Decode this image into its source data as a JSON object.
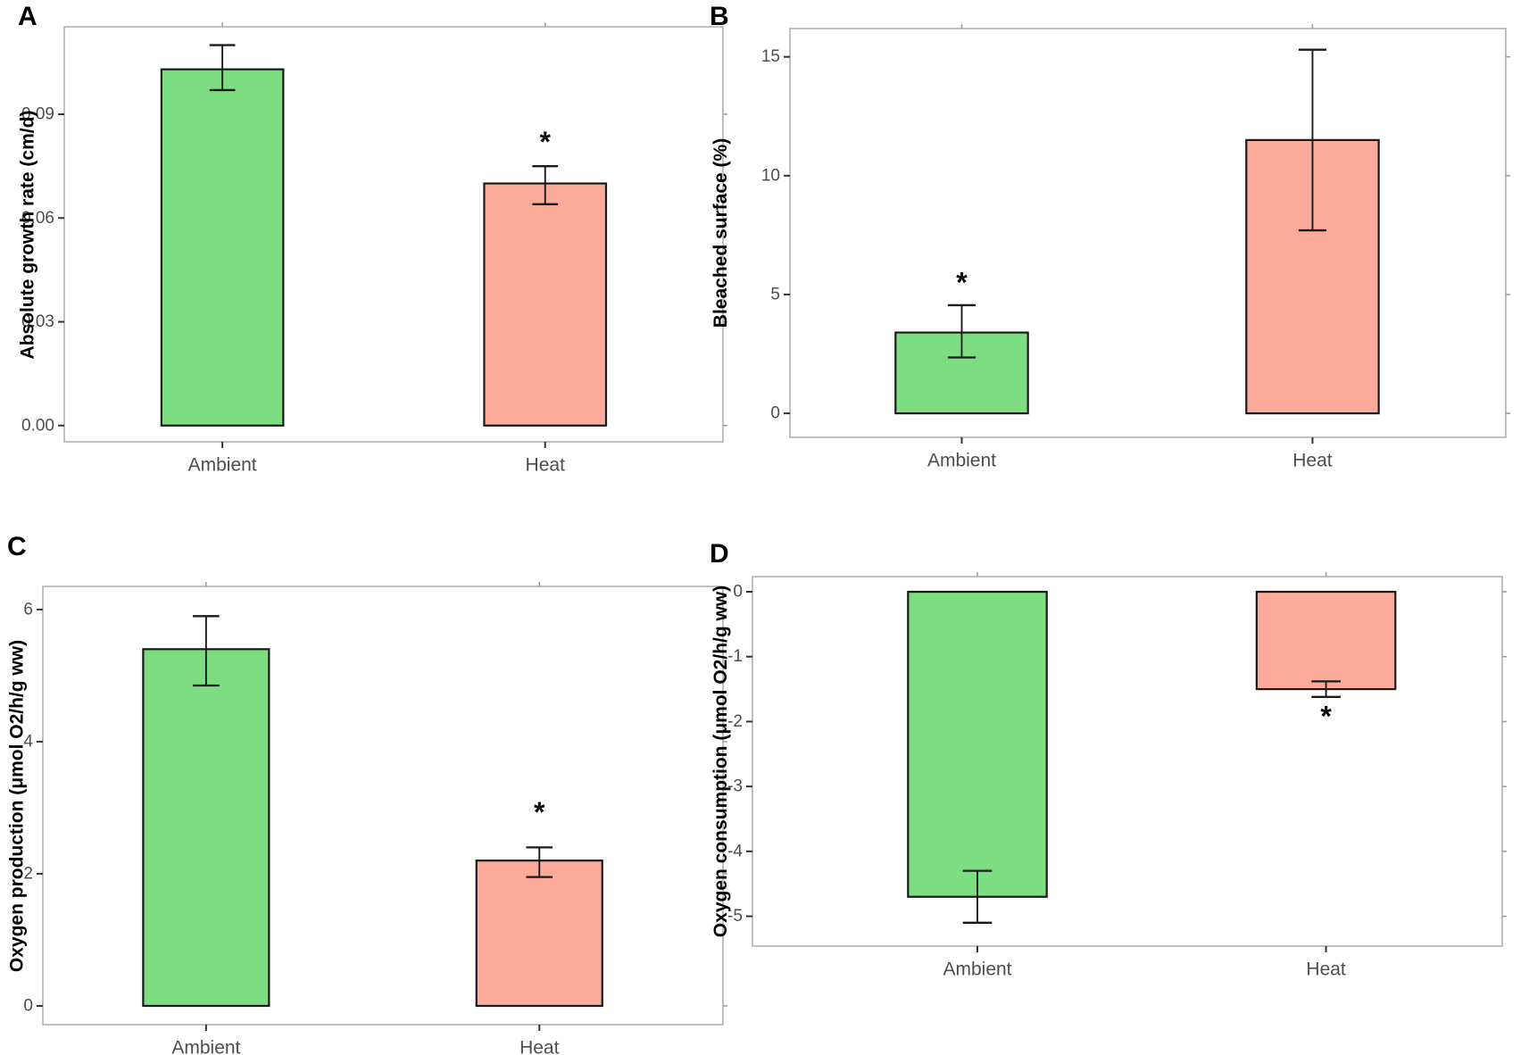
{
  "colors": {
    "ambient_fill": "#7CDE80",
    "heat_fill": "#FCAB9B",
    "bar_border": "#1A1A1A",
    "panel_border": "#ABABAB",
    "mirror_tick": "#9B9B9B",
    "axis_tick": "#333333",
    "tick_label": "#4D4D4D",
    "category_label": "#4D4D4D",
    "star_color": "#0A0A0A"
  },
  "chart_data": [
    {
      "panel_label": "A",
      "type": "bar",
      "ylabel": "Absolute growth rate (cm/d)",
      "categories": [
        "Ambient",
        "Heat"
      ],
      "values": [
        0.103,
        0.07
      ],
      "err_low": [
        0.097,
        0.064
      ],
      "err_high": [
        0.11,
        0.075
      ],
      "significance": [
        "",
        "*"
      ],
      "sig_y": [
        null,
        0.082
      ],
      "yticks": [
        0.09,
        0.06,
        0.03,
        0.0
      ],
      "ytick_labels": [
        "0.09",
        "0.06",
        "0.03",
        "0.00"
      ],
      "ylim": [
        -0.0047,
        0.1153
      ],
      "bar_colors": [
        "#7CDE80",
        "#FCAB9B"
      ],
      "grid": false,
      "legend": null
    },
    {
      "panel_label": "B",
      "type": "bar",
      "ylabel": "Bleached surface (%)",
      "categories": [
        "Ambient",
        "Heat"
      ],
      "values": [
        3.4,
        11.5
      ],
      "err_low": [
        2.35,
        7.7
      ],
      "err_high": [
        4.55,
        15.3
      ],
      "significance": [
        "*",
        ""
      ],
      "sig_y": [
        5.5,
        null
      ],
      "yticks": [
        15,
        10,
        5,
        0
      ],
      "ytick_labels": [
        "15",
        "10",
        "5",
        "0"
      ],
      "ylim": [
        -1.01,
        16.19
      ],
      "bar_colors": [
        "#7CDE80",
        "#FCAB9B"
      ],
      "grid": false,
      "legend": null
    },
    {
      "panel_label": "C",
      "type": "bar",
      "ylabel": "Oxygen production (μmol O2/h/g ww)",
      "categories": [
        "Ambient",
        "Heat"
      ],
      "values": [
        5.4,
        2.2
      ],
      "err_low": [
        4.85,
        1.95
      ],
      "err_high": [
        5.9,
        2.4
      ],
      "significance": [
        "",
        "*"
      ],
      "sig_y": [
        null,
        2.93
      ],
      "yticks": [
        6,
        4,
        2,
        0
      ],
      "ytick_labels": [
        "6",
        "4",
        "2",
        "0"
      ],
      "ylim": [
        -0.284,
        6.35
      ],
      "bar_colors": [
        "#7CDE80",
        "#FCAB9B"
      ],
      "grid": false,
      "legend": null
    },
    {
      "panel_label": "D",
      "type": "bar",
      "ylabel": "Oxygen consumption (μmol O2/h/g ww)",
      "categories": [
        "Ambient",
        "Heat"
      ],
      "values": [
        -4.7,
        -1.5
      ],
      "err_low": [
        -5.1,
        -1.62
      ],
      "err_high": [
        -4.3,
        -1.38
      ],
      "significance": [
        "",
        "*"
      ],
      "sig_y": [
        null,
        -1.92
      ],
      "yticks": [
        0,
        -1,
        -2,
        -3,
        -4,
        -5
      ],
      "ytick_labels": [
        "0",
        "-1",
        "-2",
        "-3",
        "-4",
        "-5"
      ],
      "ylim": [
        -5.46,
        0.234
      ],
      "bar_colors": [
        "#7CDE80",
        "#FCAB9B"
      ],
      "grid": false,
      "legend": null
    }
  ]
}
